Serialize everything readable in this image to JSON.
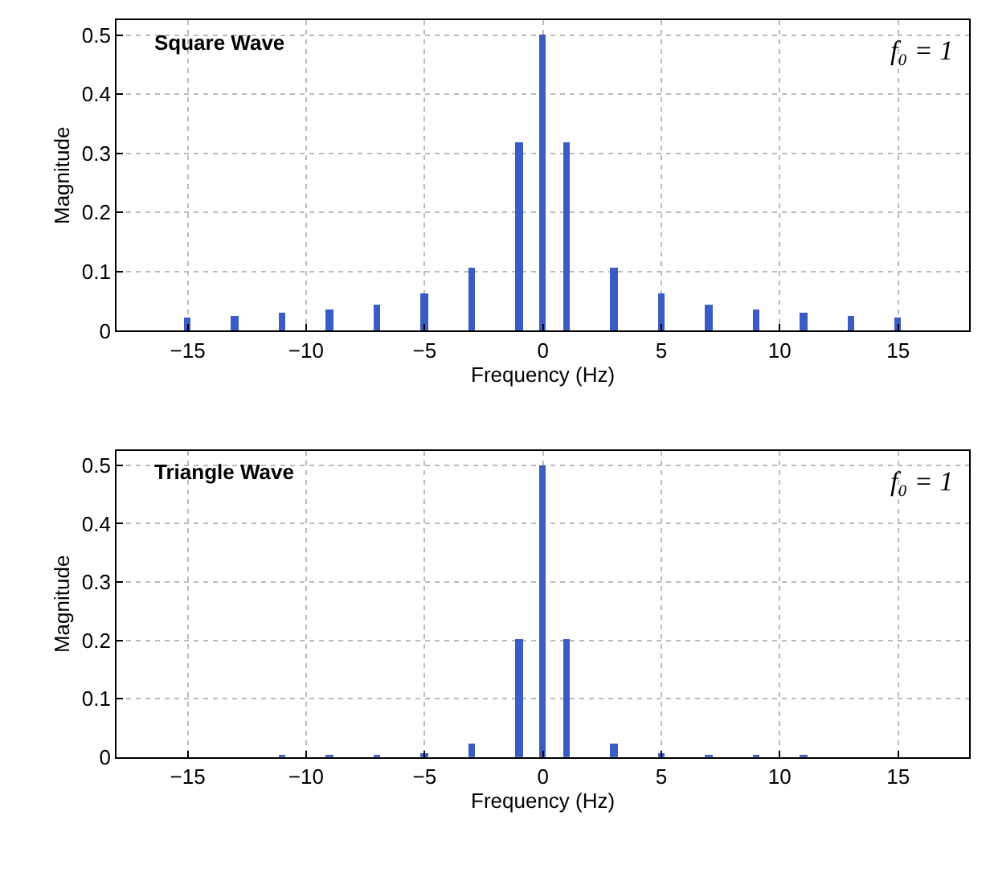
{
  "chart_data": [
    {
      "type": "bar",
      "x": [
        -15,
        -13,
        -11,
        -9,
        -7,
        -5,
        -3,
        -1,
        0,
        1,
        3,
        5,
        7,
        9,
        11,
        13,
        15
      ],
      "values": [
        0.021,
        0.024,
        0.029,
        0.035,
        0.045,
        0.064,
        0.106,
        0.318,
        0.5,
        0.318,
        0.106,
        0.064,
        0.045,
        0.035,
        0.029,
        0.024,
        0.021
      ],
      "color": "#3b5cc4",
      "xlabel": "Frequency (Hz)",
      "ylabel": "Magnitude",
      "annotations": [
        "Square Wave",
        "f₀ = 1"
      ],
      "xlim": [
        -18,
        18
      ],
      "xticks": [
        -15,
        -10,
        -5,
        0,
        5,
        10,
        15
      ],
      "ylim": [
        0,
        0.525
      ],
      "yticks": [
        0,
        0.1,
        0.2,
        0.3,
        0.4,
        0.5
      ],
      "grid": true
    },
    {
      "type": "bar",
      "x": [
        -11,
        -9,
        -7,
        -5,
        -3,
        -1,
        0,
        1,
        3,
        5,
        7,
        9,
        11
      ],
      "values": [
        0.002,
        0.003,
        0.004,
        0.008,
        0.023,
        0.203,
        0.5,
        0.203,
        0.023,
        0.008,
        0.004,
        0.003,
        0.002
      ],
      "color": "#3b5cc4",
      "xlabel": "Frequency (Hz)",
      "ylabel": "Magnitude",
      "annotations": [
        "Triangle Wave",
        "f₀ = 1"
      ],
      "xlim": [
        -18,
        18
      ],
      "xticks": [
        -15,
        -10,
        -5,
        0,
        5,
        10,
        15
      ],
      "ylim": [
        0,
        0.525
      ],
      "yticks": [
        0,
        0.1,
        0.2,
        0.3,
        0.4,
        0.5
      ],
      "grid": true
    }
  ]
}
